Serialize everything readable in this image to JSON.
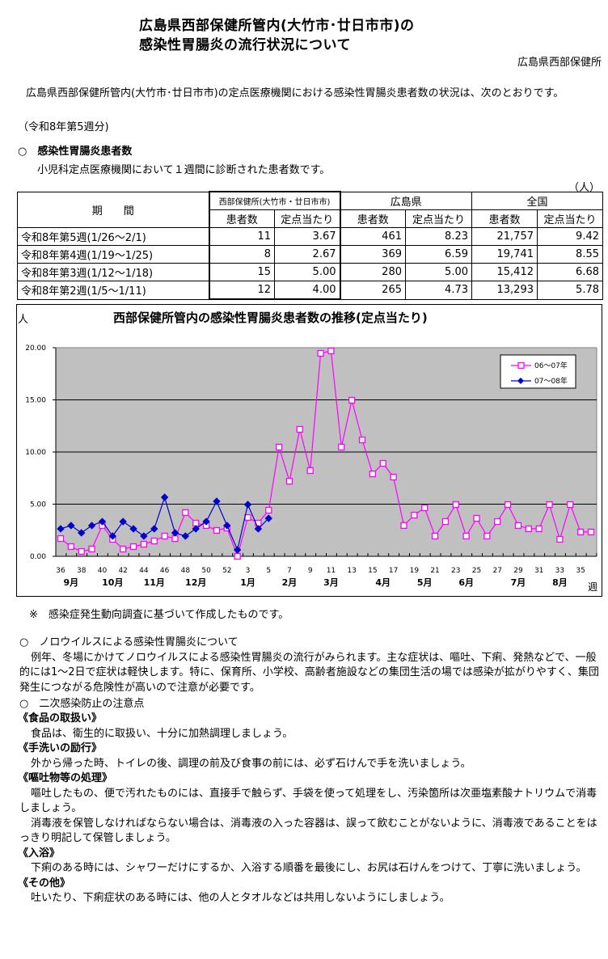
{
  "header": {
    "title_line1": "広島県西部保健所管内(大竹市･廿日市市)の",
    "title_line2": "感染性胃腸炎の流行状況について",
    "organization": "広島県西部保健所"
  },
  "intro": {
    "text": "広島県西部保健所管内(大竹市･廿日市市)の定点医療機関における感染性胃腸炎患者数の状況は、次のとおりです。",
    "week_note": "（令和8年第5週分)"
  },
  "section1": {
    "heading": "○　感染性胃腸炎患者数",
    "subtext": "小児科定点医療機関において１週間に診断された患者数です。",
    "unit": "（人）"
  },
  "table": {
    "period_header": "期　　間",
    "groups": [
      "西部保健所(大竹市・廿日市市)",
      "広島県",
      "全国"
    ],
    "sub_headers": [
      "患者数",
      "定点当たり",
      "患者数",
      "定点当たり",
      "患者数",
      "定点当たり"
    ],
    "rows": [
      {
        "period": "令和8年第5週(1/26～2/1)",
        "west_cases": "11",
        "west_per": "3.67",
        "pref_cases": "461",
        "pref_per": "8.23",
        "nat_cases": "21,757",
        "nat_per": "9.42"
      },
      {
        "period": "令和8年第4週(1/19～1/25)",
        "west_cases": "8",
        "west_per": "2.67",
        "pref_cases": "369",
        "pref_per": "6.59",
        "nat_cases": "19,741",
        "nat_per": "8.55"
      },
      {
        "period": "令和8年第3週(1/12～1/18)",
        "west_cases": "15",
        "west_per": "5.00",
        "pref_cases": "280",
        "pref_per": "5.00",
        "nat_cases": "15,412",
        "nat_per": "6.68"
      },
      {
        "period": "令和8年第2週(1/5～1/11)",
        "west_cases": "12",
        "west_per": "4.00",
        "pref_cases": "265",
        "pref_per": "4.73",
        "nat_cases": "13,293",
        "nat_per": "5.78"
      }
    ]
  },
  "chart_data": {
    "type": "line",
    "title": "西部保健所管内の感染性胃腸炎患者数の推移(定点当たり)",
    "ylabel": "人",
    "xlabel": "週",
    "ylim": [
      0,
      20
    ],
    "yticks": [
      "0.00",
      "5.00",
      "10.00",
      "15.00",
      "20.00"
    ],
    "grid": true,
    "legend_position": "upper-right",
    "x": [
      36,
      37,
      38,
      39,
      40,
      41,
      42,
      43,
      44,
      45,
      46,
      47,
      48,
      49,
      50,
      51,
      52,
      1,
      2,
      3,
      4,
      5,
      6,
      7,
      8,
      9,
      10,
      11,
      12,
      13,
      14,
      15,
      16,
      17,
      18,
      19,
      20,
      21,
      22,
      23,
      24,
      25,
      26,
      27,
      28,
      29,
      30,
      31,
      32,
      33,
      34,
      35
    ],
    "xtick_labels": [
      "36",
      "38",
      "40",
      "42",
      "44",
      "46",
      "48",
      "50",
      "52",
      "3",
      "5",
      "7",
      "9",
      "11",
      "13",
      "15",
      "17",
      "19",
      "21",
      "23",
      "25",
      "27",
      "29",
      "31",
      "33",
      "35"
    ],
    "month_labels": [
      {
        "label": "9月",
        "week_index": 1
      },
      {
        "label": "10月",
        "week_index": 5
      },
      {
        "label": "11月",
        "week_index": 9
      },
      {
        "label": "12月",
        "week_index": 13
      },
      {
        "label": "1月",
        "week_index": 18
      },
      {
        "label": "2月",
        "week_index": 22
      },
      {
        "label": "3月",
        "week_index": 26
      },
      {
        "label": "4月",
        "week_index": 31
      },
      {
        "label": "5月",
        "week_index": 35
      },
      {
        "label": "6月",
        "week_index": 39
      },
      {
        "label": "7月",
        "week_index": 44
      },
      {
        "label": "8月",
        "week_index": 48
      }
    ],
    "series": [
      {
        "name": "06～07年",
        "color": "#ff00ff",
        "marker": "square-open",
        "values": [
          1.7,
          0.93,
          0.46,
          0.7,
          2.95,
          1.63,
          0.7,
          0.93,
          1.16,
          1.47,
          1.94,
          1.7,
          4.19,
          3.18,
          2.95,
          2.48,
          2.71,
          0.0,
          3.72,
          3.18,
          4.42,
          10.47,
          7.2,
          12.17,
          8.22,
          19.46,
          19.69,
          10.47,
          14.96,
          11.16,
          7.9,
          8.91,
          7.6,
          2.95,
          3.95,
          4.65,
          1.94,
          3.33,
          4.96,
          1.94,
          3.64,
          1.94,
          3.33,
          4.96,
          2.95,
          2.64,
          2.64,
          4.96,
          1.63,
          4.96,
          2.33,
          2.33
        ]
      },
      {
        "name": "07～08年",
        "color": "#0000cc",
        "marker": "diamond-filled",
        "values": [
          2.64,
          2.95,
          2.25,
          2.95,
          3.33,
          1.94,
          3.33,
          2.64,
          1.94,
          2.64,
          5.66,
          2.25,
          1.94,
          2.64,
          3.33,
          5.27,
          2.95,
          0.62,
          4.96,
          2.64,
          3.64
        ]
      }
    ]
  },
  "chart_note": "※　感染症発生動向調査に基づいて作成したものです。",
  "section2": {
    "heading": "○　ノロウイルスによる感染性胃腸炎について",
    "text": "例年、冬場にかけてノロウイルスによる感染性胃腸炎の流行がみられます。主な症状は、嘔吐、下痢、発熱などで、一般的には1～2日で症状は軽快します。特に、保育所、小学校、高齢者施設などの集団生活の場では感染が拡がりやすく、集団発生につながる危険性が高いので注意が必要です。"
  },
  "section3": {
    "heading": "○　二次感染防止の注意点",
    "items": [
      {
        "title": "《食品の取扱い》",
        "paragraphs": [
          "食品は、衛生的に取扱い、十分に加熱調理しましょう。"
        ]
      },
      {
        "title": "《手洗いの励行》",
        "paragraphs": [
          "外から帰った時、トイレの後、調理の前及び食事の前には、必ず石けんで手を洗いましょう。"
        ]
      },
      {
        "title": "《嘔吐物等の処理》",
        "paragraphs": [
          "嘔吐したもの、便で汚れたものには、直接手で触らず、手袋を使って処理をし、汚染箇所は次亜塩素酸ナトリウムで消毒しましょう。",
          "消毒液を保管しなければならない場合は、消毒液の入った容器は、誤って飲むことがないように、消毒液であることをはっきり明記して保管しましょう。"
        ]
      },
      {
        "title": "《入浴》",
        "paragraphs": [
          "下痢のある時には、シャワーだけにするか、入浴する順番を最後にし、お尻は石けんをつけて、丁寧に洗いましょう。"
        ]
      },
      {
        "title": "《その他》",
        "paragraphs": [
          "吐いたり、下痢症状のある時には、他の人とタオルなどは共用しないようにしましょう。"
        ]
      }
    ]
  }
}
